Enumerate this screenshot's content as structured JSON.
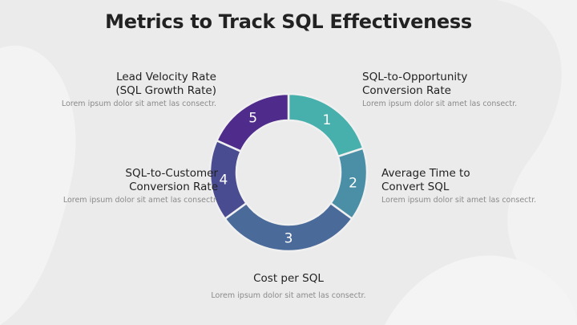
{
  "title": "Metrics to Track SQL Effectiveness",
  "items": [
    {
      "number": "1",
      "title_lines": [
        "SQL-to-Opportunity",
        "Conversion Rate"
      ],
      "description": "Lorem ipsum dolor sit amet las consectr.",
      "color": "#48b0ac"
    },
    {
      "number": "2",
      "title_lines": [
        "Average Time to",
        "Convert SQL"
      ],
      "description": "Lorem ipsum dolor sit amet las consectr.",
      "color": "#4a8fa6"
    },
    {
      "number": "3",
      "title_lines": [
        "Cost per SQL"
      ],
      "description": "Lorem ipsum dolor sit amet las consectr.",
      "color": "#4a6a9a"
    },
    {
      "number": "4",
      "title_lines": [
        "SQL-to-Customer",
        "Conversion Rate"
      ],
      "description": "Lorem ipsum dolor sit amet las consectr.",
      "color": "#4a4c92"
    },
    {
      "number": "5",
      "title_lines": [
        "Lead Velocity Rate",
        "(SQL Growth Rate)"
      ],
      "description": "Lorem ipsum dolor sit amet las consectr.",
      "color": "#4f2c8c"
    }
  ]
}
